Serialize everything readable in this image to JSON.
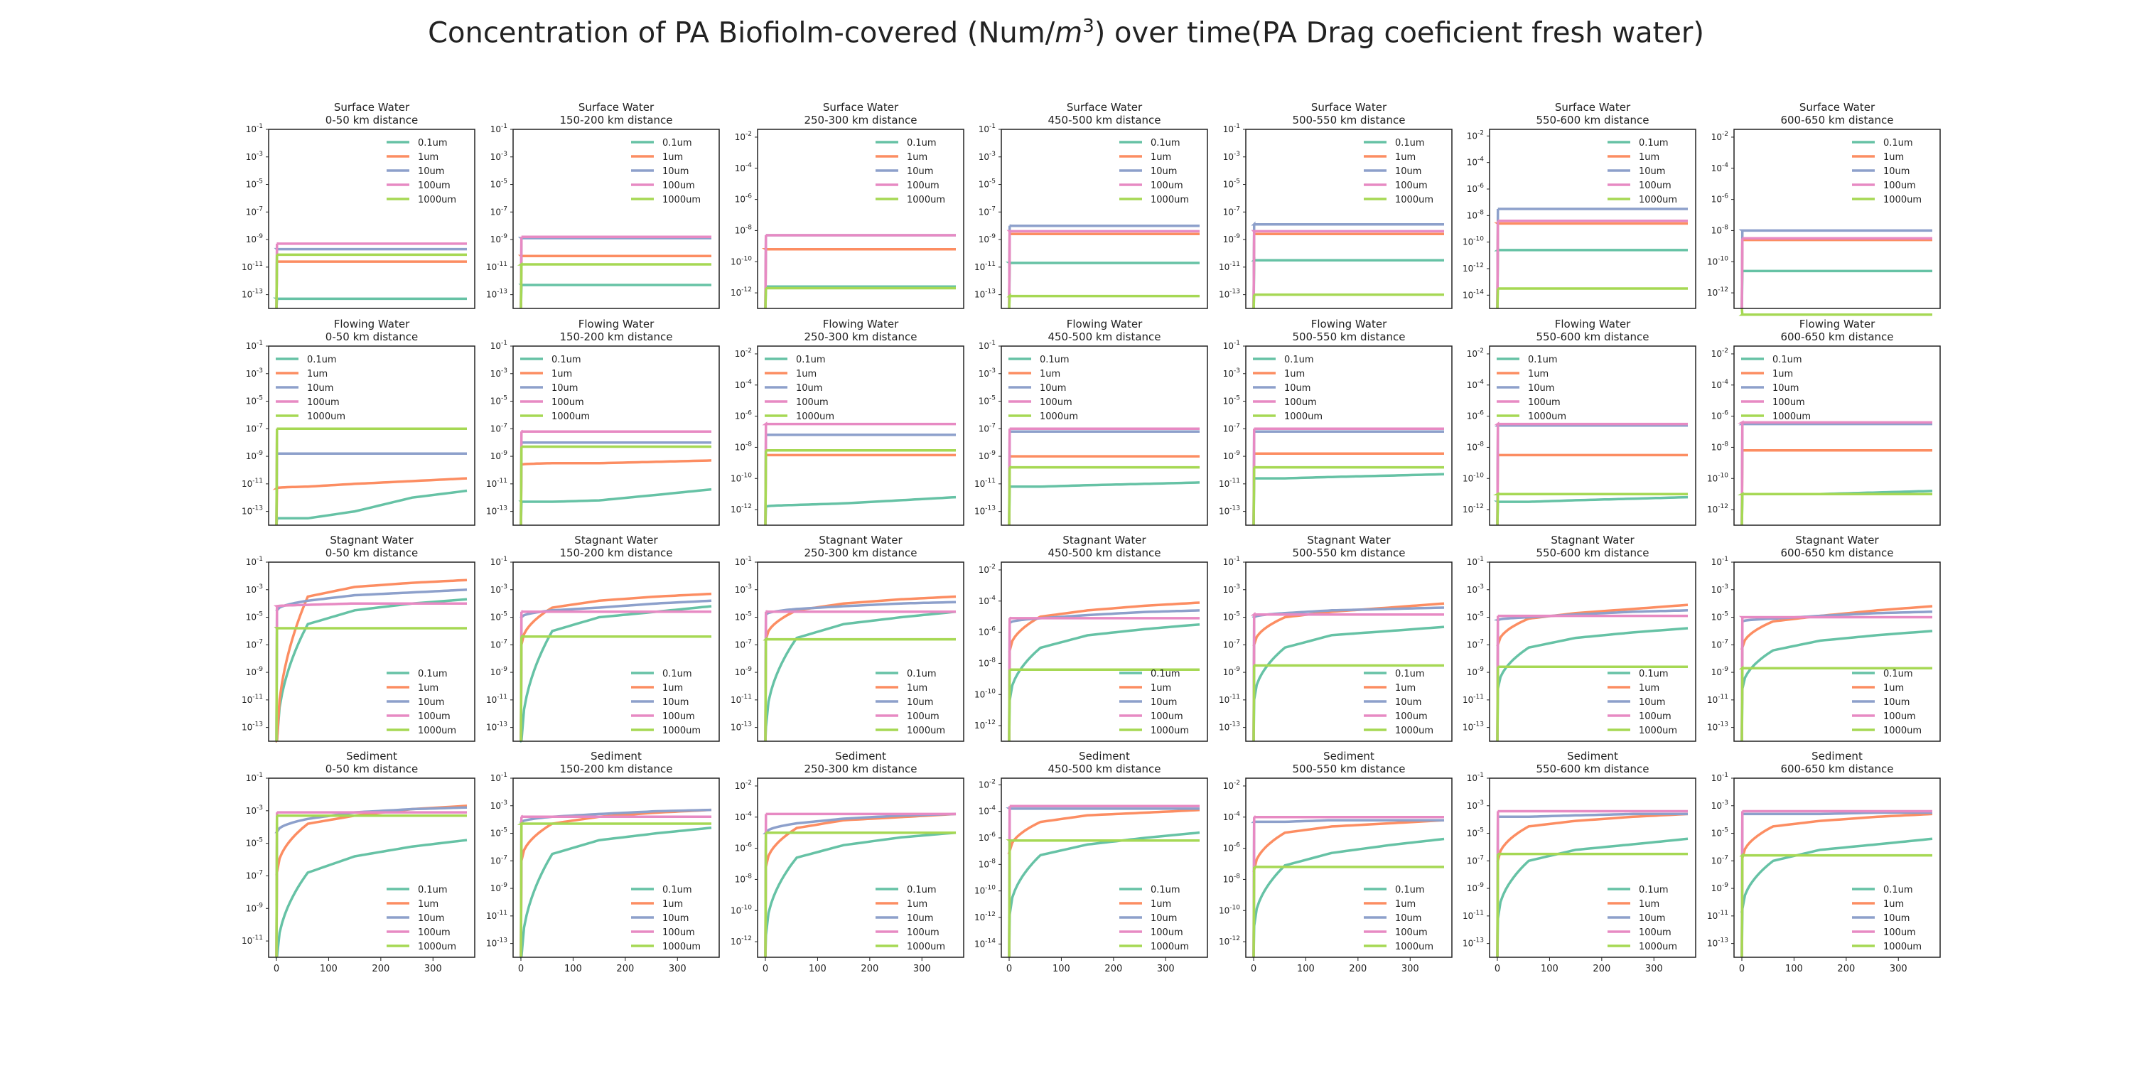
{
  "suptitle": {
    "prefix": "Concentration of PA Biofiolm-covered (Num/",
    "unit_base": "m",
    "unit_exp": "3",
    "suffix": ") over time(PA Drag coeficient fresh water)"
  },
  "colors": {
    "0.1um": "#66c2a5",
    "1um": "#fc8d62",
    "10um": "#8da0cb",
    "100um": "#e78ac3",
    "1000um": "#a6d854",
    "axis": "#222222"
  },
  "chart_data": {
    "type": "line",
    "xlabel": "",
    "ylabel": "",
    "y_scale": "log",
    "xlim": [
      -15,
      380
    ],
    "x_ticks": [
      0,
      100,
      200,
      300
    ],
    "row_titles": [
      "Surface Water",
      "Flowing Water",
      "Stagnant Water",
      "Sediment"
    ],
    "col_titles": [
      "0-50 km distance",
      "150-200 km distance",
      "250-300 km distance",
      "450-500 km distance",
      "500-550 km distance",
      "550-600 km distance",
      "600-650 km distance"
    ],
    "legend_labels": [
      "0.1um",
      "1um",
      "10um",
      "100um",
      "1000um"
    ],
    "legend_loc": [
      [
        "upper right",
        "upper right",
        "upper right",
        "upper right",
        "upper right",
        "upper right",
        "upper right"
      ],
      [
        "upper left",
        "upper left",
        "upper left",
        "upper left",
        "upper left",
        "upper left",
        "upper left"
      ],
      [
        "lower right",
        "lower right",
        "lower right",
        "lower right",
        "lower right",
        "lower right",
        "lower right"
      ],
      [
        "lower right",
        "lower right",
        "lower right",
        "lower right",
        "lower right",
        "lower right",
        "lower right"
      ]
    ],
    "ylim_exp": [
      [
        [
          -14,
          -1
        ],
        [
          -14,
          -1
        ],
        [
          -13,
          -1.5
        ],
        [
          -14,
          -1
        ],
        [
          -14,
          -1
        ],
        [
          -15,
          -1.5
        ],
        [
          -13,
          -1.5
        ]
      ],
      [
        [
          -14,
          -1
        ],
        [
          -14,
          -1
        ],
        [
          -13,
          -1.5
        ],
        [
          -14,
          -1
        ],
        [
          -14,
          -1
        ],
        [
          -13,
          -1.5
        ],
        [
          -13,
          -1.5
        ]
      ],
      [
        [
          -14,
          -1
        ],
        [
          -14,
          -1
        ],
        [
          -14,
          -1
        ],
        [
          -13,
          -1.5
        ],
        [
          -14,
          -1
        ],
        [
          -14,
          -1
        ],
        [
          -14,
          -1
        ]
      ],
      [
        [
          -12,
          -1
        ],
        [
          -14,
          -1
        ],
        [
          -13,
          -1.5
        ],
        [
          -15,
          -1.5
        ],
        [
          -13,
          -1.5
        ],
        [
          -14,
          -1
        ],
        [
          -14,
          -1
        ]
      ]
    ],
    "yticks_exp": [
      [
        [
          -13,
          -11,
          -9,
          -7,
          -5,
          -3,
          -1
        ],
        [
          -13,
          -11,
          -9,
          -7,
          -5,
          -3,
          -1
        ],
        [
          -12,
          -10,
          -8,
          -6,
          -4,
          -2
        ],
        [
          -13,
          -11,
          -9,
          -7,
          -5,
          -3,
          -1
        ],
        [
          -13,
          -11,
          -9,
          -7,
          -5,
          -3,
          -1
        ],
        [
          -14,
          -12,
          -10,
          -8,
          -6,
          -4,
          -2
        ],
        [
          -12,
          -10,
          -8,
          -6,
          -4,
          -2
        ]
      ],
      [
        [
          -13,
          -11,
          -9,
          -7,
          -5,
          -3,
          -1
        ],
        [
          -13,
          -11,
          -9,
          -7,
          -5,
          -3,
          -1
        ],
        [
          -12,
          -10,
          -8,
          -6,
          -4,
          -2
        ],
        [
          -13,
          -11,
          -9,
          -7,
          -5,
          -3,
          -1
        ],
        [
          -13,
          -11,
          -9,
          -7,
          -5,
          -3,
          -1
        ],
        [
          -12,
          -10,
          -8,
          -6,
          -4,
          -2
        ],
        [
          -12,
          -10,
          -8,
          -6,
          -4,
          -2
        ]
      ],
      [
        [
          -13,
          -11,
          -9,
          -7,
          -5,
          -3,
          -1
        ],
        [
          -13,
          -11,
          -9,
          -7,
          -5,
          -3,
          -1
        ],
        [
          -13,
          -11,
          -9,
          -7,
          -5,
          -3,
          -1
        ],
        [
          -12,
          -10,
          -8,
          -6,
          -4,
          -2
        ],
        [
          -13,
          -11,
          -9,
          -7,
          -5,
          -3,
          -1
        ],
        [
          -13,
          -11,
          -9,
          -7,
          -5,
          -3,
          -1
        ],
        [
          -13,
          -11,
          -9,
          -7,
          -5,
          -3,
          -1
        ]
      ],
      [
        [
          -11,
          -9,
          -7,
          -5,
          -3,
          -1
        ],
        [
          -13,
          -11,
          -9,
          -7,
          -5,
          -3,
          -1
        ],
        [
          -12,
          -10,
          -8,
          -6,
          -4,
          -2
        ],
        [
          -14,
          -12,
          -10,
          -8,
          -6,
          -4,
          -2
        ],
        [
          -12,
          -10,
          -8,
          -6,
          -4,
          -2
        ],
        [
          -13,
          -11,
          -9,
          -7,
          -5,
          -3,
          -1
        ],
        [
          -13,
          -11,
          -9,
          -7,
          -5,
          -3,
          -1
        ]
      ]
    ],
    "panels": [
      [
        {
          "s": [
            [
              -13.3
            ],
            [
              -10.6
            ],
            [
              -9.7
            ],
            [
              -9.3
            ],
            [
              -10.1
            ]
          ]
        },
        {
          "s": [
            [
              -12.3
            ],
            [
              -10.2
            ],
            [
              -8.9
            ],
            [
              -8.8
            ],
            [
              -10.8
            ]
          ]
        },
        {
          "s": [
            [
              -11.6
            ],
            [
              -9.2
            ],
            [
              -8.3
            ],
            [
              -8.3
            ],
            [
              -11.7
            ]
          ]
        },
        {
          "s": [
            [
              -10.7
            ],
            [
              -8.6
            ],
            [
              -8.0
            ],
            [
              -8.4
            ],
            [
              -13.1
            ]
          ]
        },
        {
          "s": [
            [
              -10.5
            ],
            [
              -8.6
            ],
            [
              -7.9
            ],
            [
              -8.4
            ],
            [
              -13.0
            ]
          ]
        },
        {
          "s": [
            [
              -10.6
            ],
            [
              -8.6
            ],
            [
              -7.5
            ],
            [
              -8.4
            ],
            [
              -13.5
            ]
          ]
        },
        {
          "s": [
            [
              -10.6
            ],
            [
              -8.6
            ],
            [
              -8.0
            ],
            [
              -8.5
            ],
            [
              -13.4
            ]
          ]
        }
      ],
      [
        {
          "s": [
            [
              -13.5,
              -13.5,
              -13.0,
              -12.0,
              -11.5
            ],
            [
              -11.3,
              -11.2,
              -11.0,
              -10.8,
              -10.6
            ],
            [
              -8.8
            ],
            [
              -7.0
            ],
            [
              -7.0
            ]
          ]
        },
        {
          "s": [
            [
              -12.3,
              -12.3,
              -12.2,
              -11.8,
              -11.4
            ],
            [
              -9.6,
              -9.5,
              -9.5,
              -9.4,
              -9.3
            ],
            [
              -8.0
            ],
            [
              -7.2
            ],
            [
              -8.3
            ]
          ]
        },
        {
          "s": [
            [
              -11.8,
              -11.7,
              -11.6,
              -11.4,
              -11.2
            ],
            [
              -8.5,
              -8.5,
              -8.5,
              -8.5,
              -8.5
            ],
            [
              -7.2
            ],
            [
              -6.5
            ],
            [
              -8.2
            ]
          ]
        },
        {
          "s": [
            [
              -11.2,
              -11.2,
              -11.1,
              -11.0,
              -10.9
            ],
            [
              -9.0
            ],
            [
              -7.2
            ],
            [
              -7.0
            ],
            [
              -9.8
            ]
          ]
        },
        {
          "s": [
            [
              -10.6,
              -10.6,
              -10.5,
              -10.4,
              -10.3
            ],
            [
              -8.8
            ],
            [
              -7.2
            ],
            [
              -7.0
            ],
            [
              -9.8
            ]
          ]
        },
        {
          "s": [
            [
              -11.5,
              -11.5,
              -11.4,
              -11.3,
              -11.2
            ],
            [
              -8.5
            ],
            [
              -6.6
            ],
            [
              -6.5
            ],
            [
              -11.0
            ]
          ]
        },
        {
          "s": [
            [
              -11.0,
              -11.0,
              -11.0,
              -10.9,
              -10.8
            ],
            [
              -8.2
            ],
            [
              -6.5
            ],
            [
              -6.4
            ],
            [
              -11.0
            ]
          ]
        }
      ],
      [
        {
          "s": [
            [
              -14.0,
              -5.5,
              -4.5,
              -4.0,
              -3.7
            ],
            [
              -14.0,
              -3.5,
              -2.8,
              -2.5,
              -2.3
            ],
            [
              -4.5,
              -3.8,
              -3.4,
              -3.2,
              -3.0
            ],
            [
              -4.2,
              -4.1,
              -4.0,
              -4.0,
              -4.0
            ],
            [
              -5.8
            ]
          ]
        },
        {
          "s": [
            [
              -14.0,
              -6.0,
              -5.0,
              -4.6,
              -4.2
            ],
            [
              -7.0,
              -4.3,
              -3.8,
              -3.5,
              -3.3
            ],
            [
              -5.0,
              -4.5,
              -4.3,
              -4.0,
              -3.8
            ],
            [
              -4.6
            ],
            [
              -6.4
            ]
          ]
        },
        {
          "s": [
            [
              -13.0,
              -6.5,
              -5.5,
              -5.0,
              -4.6
            ],
            [
              -6.6,
              -4.5,
              -4.0,
              -3.7,
              -3.5
            ],
            [
              -4.8,
              -4.4,
              -4.2,
              -4.0,
              -3.9
            ],
            [
              -4.6
            ],
            [
              -6.6
            ]
          ]
        },
        {
          "s": [
            [
              -10.4,
              -7.0,
              -6.2,
              -5.8,
              -5.5
            ],
            [
              -7.2,
              -5.0,
              -4.6,
              -4.3,
              -4.1
            ],
            [
              -5.4,
              -5.1,
              -4.9,
              -4.7,
              -4.6
            ],
            [
              -5.1
            ],
            [
              -8.4
            ]
          ]
        },
        {
          "s": [
            [
              -11.0,
              -7.2,
              -6.3,
              -6.0,
              -5.7
            ],
            [
              -7.0,
              -5.0,
              -4.6,
              -4.3,
              -4.0
            ],
            [
              -5.0,
              -4.7,
              -4.5,
              -4.4,
              -4.3
            ],
            [
              -4.8
            ],
            [
              -8.5
            ]
          ]
        },
        {
          "s": [
            [
              -10.2,
              -7.2,
              -6.5,
              -6.1,
              -5.8
            ],
            [
              -7.0,
              -5.1,
              -4.7,
              -4.4,
              -4.1
            ],
            [
              -5.2,
              -5.0,
              -4.8,
              -4.6,
              -4.5
            ],
            [
              -4.9
            ],
            [
              -8.6
            ]
          ]
        },
        {
          "s": [
            [
              -10.2,
              -7.4,
              -6.7,
              -6.3,
              -6.0
            ],
            [
              -7.2,
              -5.3,
              -4.9,
              -4.5,
              -4.2
            ],
            [
              -5.3,
              -5.1,
              -4.9,
              -4.7,
              -4.6
            ],
            [
              -5.0
            ],
            [
              -8.7
            ]
          ]
        }
      ],
      [
        {
          "s": [
            [
              -12.0,
              -6.8,
              -5.8,
              -5.2,
              -4.8
            ],
            [
              -6.8,
              -3.8,
              -3.3,
              -2.9,
              -2.7
            ],
            [
              -4.3,
              -3.5,
              -3.1,
              -2.9,
              -2.8
            ],
            [
              -3.1,
              -3.1,
              -3.1,
              -3.1,
              -3.1
            ],
            [
              -3.3
            ]
          ]
        },
        {
          "s": [
            [
              -14.0,
              -6.5,
              -5.5,
              -5.0,
              -4.6
            ],
            [
              -7.0,
              -4.3,
              -3.8,
              -3.5,
              -3.3
            ],
            [
              -4.2,
              -3.8,
              -3.6,
              -3.4,
              -3.3
            ],
            [
              -3.8
            ],
            [
              -4.3
            ]
          ]
        },
        {
          "s": [
            [
              -11.6,
              -6.6,
              -5.8,
              -5.3,
              -5.0
            ],
            [
              -7.2,
              -4.7,
              -4.2,
              -4.0,
              -3.8
            ],
            [
              -5.0,
              -4.4,
              -4.1,
              -3.9,
              -3.8
            ],
            [
              -3.8
            ],
            [
              -5.0
            ]
          ]
        },
        {
          "s": [
            [
              -11.8,
              -7.3,
              -6.5,
              -6.0,
              -5.6
            ],
            [
              -7.0,
              -4.8,
              -4.3,
              -4.1,
              -3.9
            ],
            [
              -3.8,
              -3.8,
              -3.8,
              -3.8,
              -3.8
            ],
            [
              -3.6
            ],
            [
              -6.2
            ]
          ]
        },
        {
          "s": [
            [
              -11.0,
              -7.1,
              -6.3,
              -5.8,
              -5.4
            ],
            [
              -7.4,
              -5.0,
              -4.6,
              -4.4,
              -4.2
            ],
            [
              -4.3,
              -4.3,
              -4.2,
              -4.2,
              -4.2
            ],
            [
              -4.0
            ],
            [
              -7.2
            ]
          ]
        },
        {
          "s": [
            [
              -11.2,
              -7.0,
              -6.2,
              -5.8,
              -5.4
            ],
            [
              -7.0,
              -4.5,
              -4.1,
              -3.8,
              -3.6
            ],
            [
              -3.8,
              -3.8,
              -3.7,
              -3.6,
              -3.6
            ],
            [
              -3.4
            ],
            [
              -6.5
            ]
          ]
        },
        {
          "s": [
            [
              -10.5,
              -7.0,
              -6.2,
              -5.8,
              -5.4
            ],
            [
              -6.8,
              -4.5,
              -4.1,
              -3.8,
              -3.6
            ],
            [
              -3.6,
              -3.6,
              -3.6,
              -3.5,
              -3.5
            ],
            [
              -3.4
            ],
            [
              -6.6
            ]
          ]
        }
      ]
    ],
    "x_knots": [
      1,
      60,
      150,
      260,
      365
    ]
  }
}
